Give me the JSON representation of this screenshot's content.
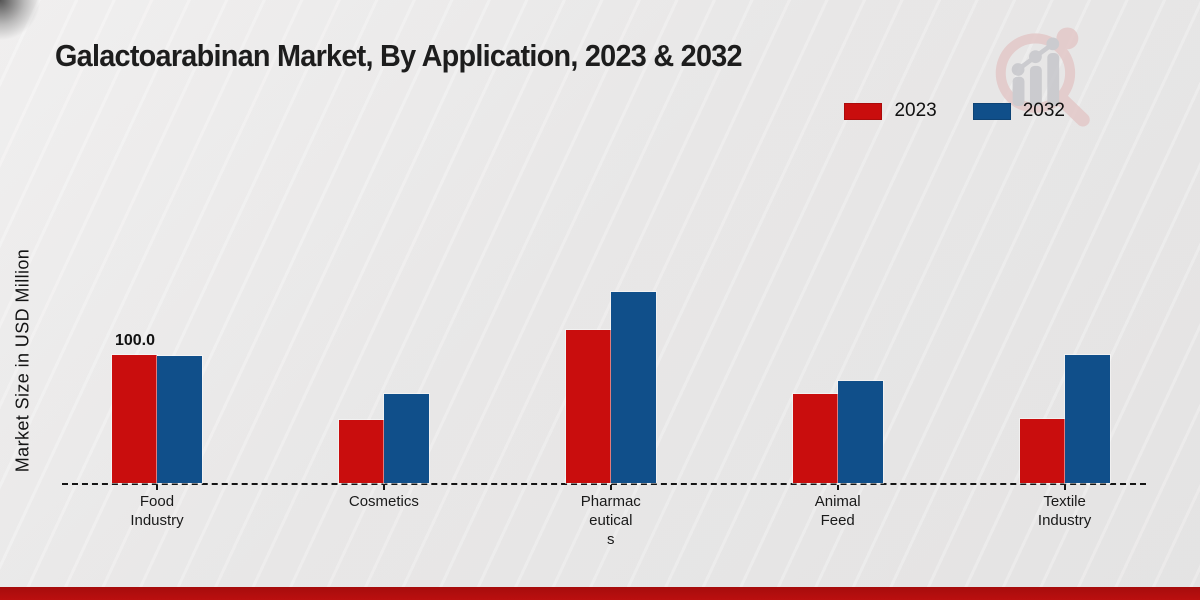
{
  "title": "Galactoarabinan Market, By Application, 2023 & 2032",
  "y_axis": {
    "label": "Market Size in USD Million"
  },
  "legend": {
    "position": "top-right",
    "items": [
      {
        "label": "2023",
        "color": "#c90d0d"
      },
      {
        "label": "2032",
        "color": "#104f8a"
      }
    ]
  },
  "watermark_icon": "magnifier-bar-chart-logo",
  "colors": {
    "background": "#eaeaea",
    "bar_2023": "#c90d0d",
    "bar_2032": "#104f8a",
    "baseline": "#151515",
    "bottom_band": "#b30d0d"
  },
  "chart_data": {
    "type": "bar",
    "title": "Galactoarabinan Market, By Application, 2023 & 2032",
    "xlabel": "",
    "ylabel": "Market Size in USD Million",
    "categories": [
      "Food Industry",
      "Cosmetics",
      "Pharmaceuticals",
      "Animal Feed",
      "Textile Industry"
    ],
    "category_label_lines": [
      [
        "Food",
        "Industry"
      ],
      [
        "Cosmetics"
      ],
      [
        "Pharmac",
        "eutical",
        "s"
      ],
      [
        "Animal",
        "Feed"
      ],
      [
        "Textile",
        "Industry"
      ]
    ],
    "series": [
      {
        "name": "2023",
        "color": "#c90d0d",
        "values": [
          100.0,
          49,
          119,
          69,
          50
        ]
      },
      {
        "name": "2032",
        "color": "#104f8a",
        "values": [
          99,
          69,
          149,
          79,
          100
        ]
      }
    ],
    "annotations": [
      {
        "series": "2023",
        "category": "Food Industry",
        "category_index": 0,
        "text": "100.0"
      }
    ],
    "ylim": [
      0,
      160
    ],
    "grid": false,
    "legend_position": "top-right",
    "baseline_style": "dashed"
  }
}
